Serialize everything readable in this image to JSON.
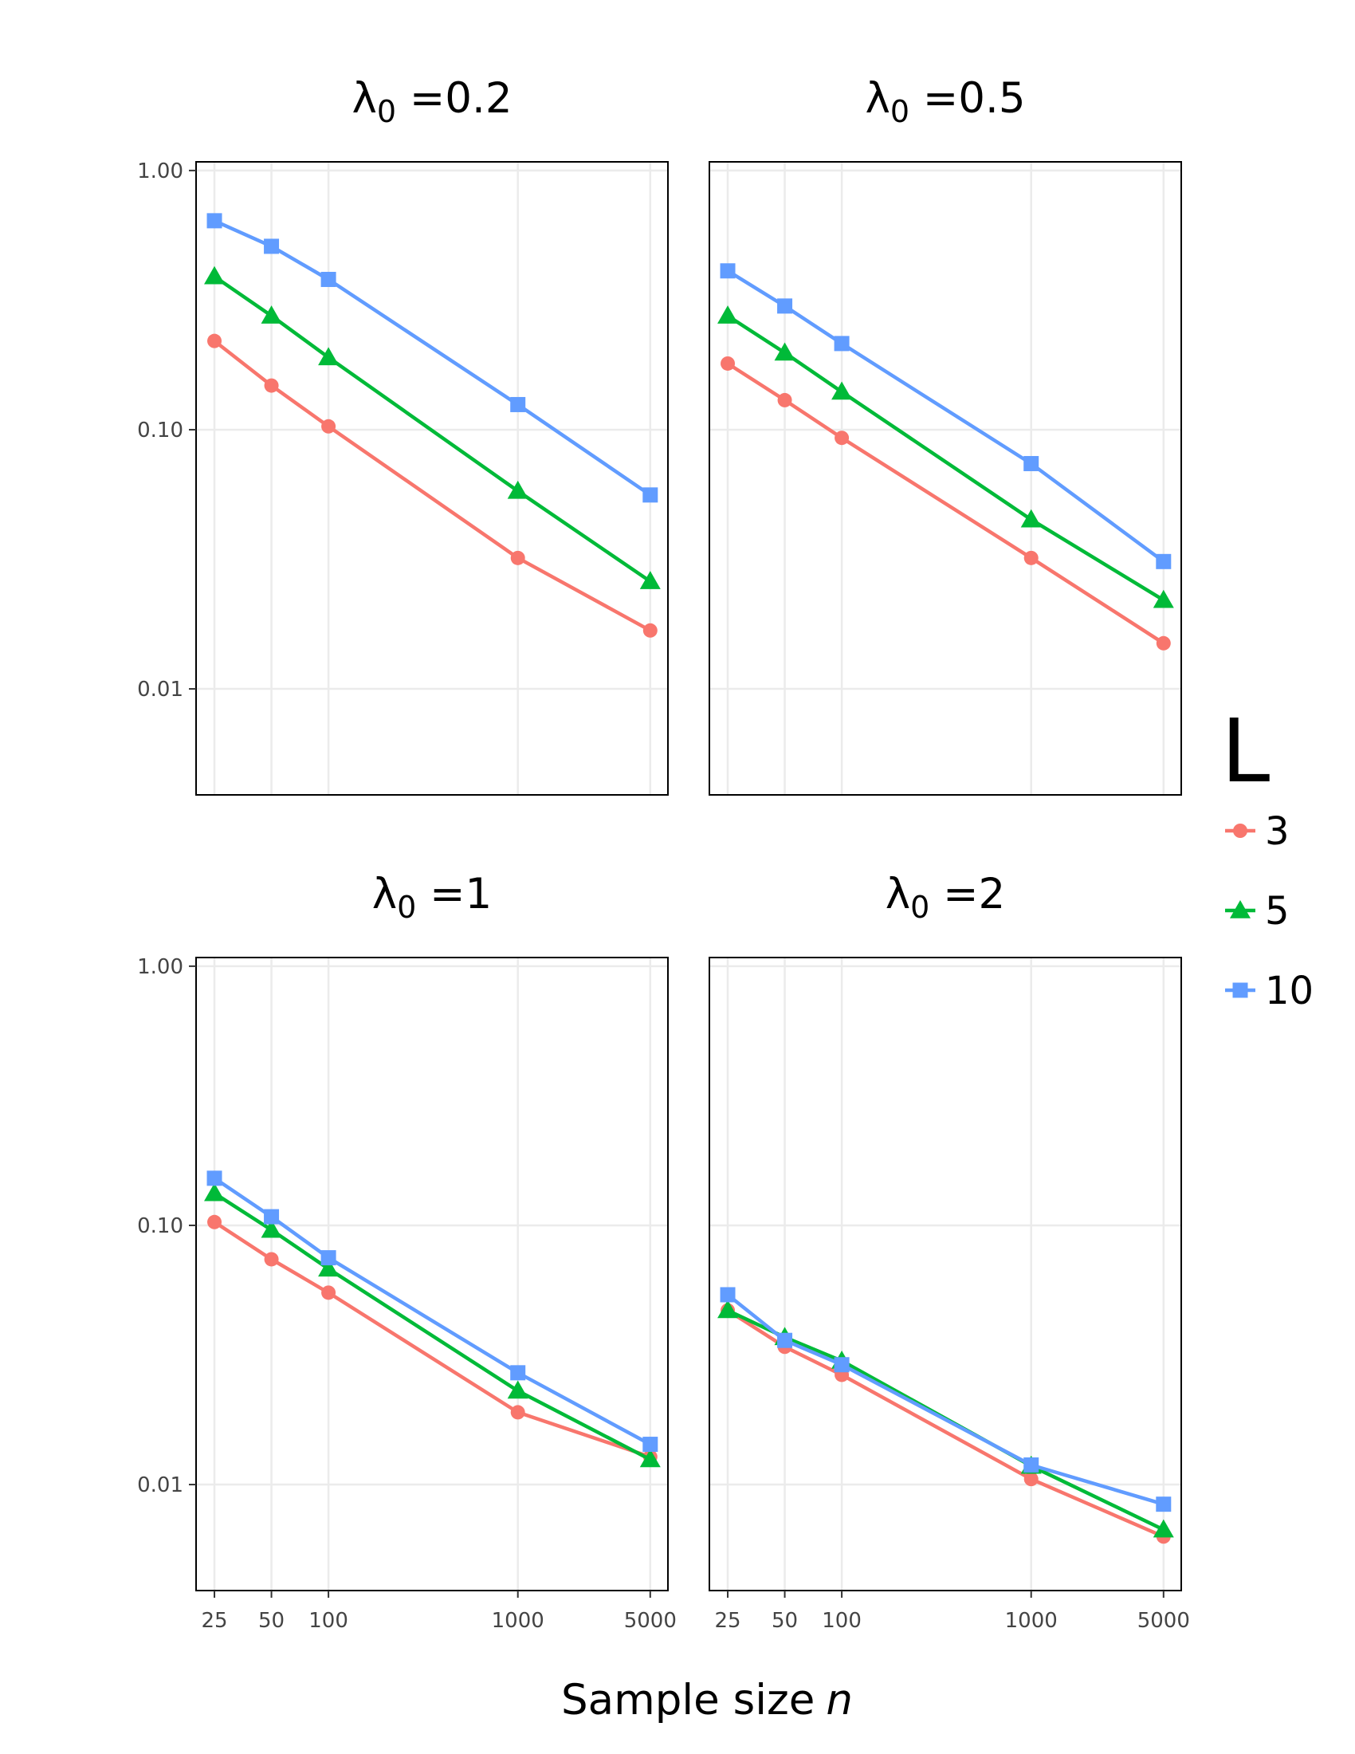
{
  "chart_data": {
    "type": "line",
    "layout": "facet-grid-2x2",
    "xlabel": "Sample size",
    "xlabel_var": "n",
    "ylabel": "",
    "x_scale": "log",
    "y_scale": "log",
    "x_ticks": [
      25,
      50,
      100,
      1000,
      5000
    ],
    "x_tick_labels": [
      "25",
      "50",
      "100",
      "1000",
      "5000"
    ],
    "y_ticks": [
      0.01,
      0.1,
      1.0
    ],
    "y_tick_labels": [
      "0.01",
      "0.10",
      "1.00"
    ],
    "ylim": [
      0.0039,
      1.08
    ],
    "xlim": [
      20,
      6200
    ],
    "grid": true,
    "legend": {
      "title": "L",
      "placement": "right",
      "entries": [
        {
          "label": "3",
          "color": "#F8766D",
          "marker": "circle"
        },
        {
          "label": "5",
          "color": "#00BA38",
          "marker": "triangle"
        },
        {
          "label": "10",
          "color": "#619CFF",
          "marker": "square"
        }
      ]
    },
    "panels": [
      {
        "title_symbol": "λ",
        "title_sub": "0",
        "title_value": " =0.2",
        "x": [
          25,
          50,
          100,
          1000,
          5000
        ],
        "series": [
          {
            "name": "3",
            "values": [
              0.22,
              0.148,
              0.103,
              0.032,
              0.0168
            ]
          },
          {
            "name": "5",
            "values": [
              0.39,
              0.275,
              0.19,
              0.058,
              0.026
            ]
          },
          {
            "name": "10",
            "values": [
              0.64,
              0.51,
              0.38,
              0.125,
              0.056
            ]
          }
        ]
      },
      {
        "title_symbol": "λ",
        "title_sub": "0",
        "title_value": " =0.5",
        "x": [
          25,
          50,
          100,
          1000,
          5000
        ],
        "series": [
          {
            "name": "3",
            "values": [
              0.18,
              0.13,
              0.093,
              0.032,
              0.015
            ]
          },
          {
            "name": "5",
            "values": [
              0.275,
              0.198,
              0.14,
              0.045,
              0.022
            ]
          },
          {
            "name": "10",
            "values": [
              0.41,
              0.3,
              0.215,
              0.074,
              0.031
            ]
          }
        ]
      },
      {
        "title_symbol": "λ",
        "title_sub": "0",
        "title_value": " =1",
        "x": [
          25,
          50,
          100,
          1000,
          5000
        ],
        "series": [
          {
            "name": "3",
            "values": [
              0.103,
              0.074,
              0.055,
              0.019,
              0.0128
            ]
          },
          {
            "name": "5",
            "values": [
              0.133,
              0.096,
              0.068,
              0.023,
              0.0125
            ]
          },
          {
            "name": "10",
            "values": [
              0.152,
              0.108,
              0.075,
              0.027,
              0.0143
            ]
          }
        ]
      },
      {
        "title_symbol": "λ",
        "title_sub": "0",
        "title_value": " =2",
        "x": [
          25,
          50,
          100,
          1000,
          5000
        ],
        "series": [
          {
            "name": "3",
            "values": [
              0.047,
              0.034,
              0.0265,
              0.0105,
              0.0063
            ]
          },
          {
            "name": "5",
            "values": [
              0.047,
              0.037,
              0.03,
              0.0118,
              0.0067
            ]
          },
          {
            "name": "10",
            "values": [
              0.054,
              0.036,
              0.029,
              0.0119,
              0.0084
            ]
          }
        ]
      }
    ]
  }
}
